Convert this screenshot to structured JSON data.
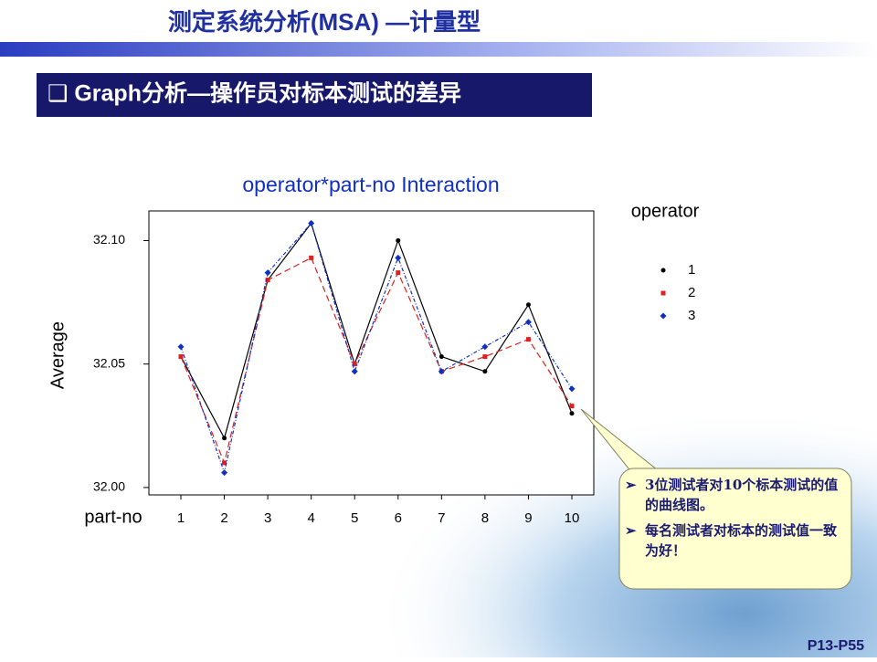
{
  "slide_title": "测定系统分析(MSA) —计量型",
  "section_heading": "❑ Graph分析—操作员对标本测试的差异",
  "chart_data": {
    "type": "line",
    "title": "operator*part-no Interaction",
    "x_label": "part-no",
    "y_label": "Average",
    "legend_title": "operator",
    "legend_position": "right",
    "categories": [
      "1",
      "2",
      "3",
      "4",
      "5",
      "6",
      "7",
      "8",
      "9",
      "10"
    ],
    "series": [
      {
        "name": "1",
        "color": "#000000",
        "marker": "circle",
        "line_style": "solid",
        "values": [
          32.053,
          32.02,
          32.084,
          32.107,
          32.05,
          32.1,
          32.053,
          32.047,
          32.074,
          32.03
        ]
      },
      {
        "name": "2",
        "color": "#e02020",
        "marker": "square",
        "line_style": "dashed",
        "values": [
          32.053,
          32.01,
          32.084,
          32.093,
          32.05,
          32.087,
          32.047,
          32.053,
          32.06,
          32.033
        ]
      },
      {
        "name": "3",
        "color": "#1030c0",
        "marker": "diamond",
        "line_style": "dotted",
        "values": [
          32.057,
          32.006,
          32.087,
          32.107,
          32.047,
          32.093,
          32.047,
          32.057,
          32.067,
          32.04
        ]
      }
    ],
    "ylim": [
      31.997,
      32.112
    ],
    "yticks": [
      {
        "value": 32.0,
        "label": "32.00"
      },
      32.05,
      {
        "value": 32.1,
        "label": "32.10"
      }
    ],
    "grid": false
  },
  "callout": {
    "bullets": [
      "3位测试者对10个标本测试的值的曲线图。",
      "每名测试者对标本的测试值一致为好！"
    ]
  },
  "page_number": "P13-P55"
}
